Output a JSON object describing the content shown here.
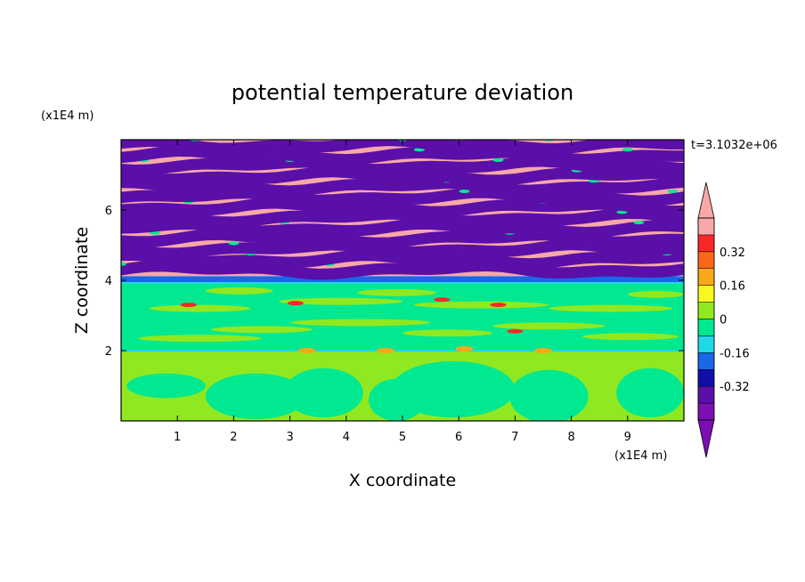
{
  "chart_data": {
    "type": "heatmap",
    "title": "potential temperature deviation",
    "xlabel": "X coordinate",
    "ylabel": "Z coordinate",
    "x_unit": "(x1E4 m)",
    "y_unit": "(x1E4 m)",
    "time_label": "t=3.1032e+06",
    "xlim": [
      0,
      10
    ],
    "ylim": [
      0,
      8
    ],
    "x_ticks": [
      "1",
      "2",
      "3",
      "4",
      "5",
      "6",
      "7",
      "8",
      "9"
    ],
    "y_ticks": [
      "2",
      "4",
      "6"
    ],
    "colorbar": {
      "levels": [
        -0.48,
        -0.4,
        -0.32,
        -0.24,
        -0.16,
        -0.08,
        0,
        0.08,
        0.16,
        0.24,
        0.32,
        0.4,
        0.48
      ],
      "colors": [
        "#7b0fb3",
        "#5a0fa8",
        "#1010a8",
        "#1868e8",
        "#20d8e8",
        "#00e890",
        "#90e820",
        "#f8f820",
        "#f8a818",
        "#f86818",
        "#f82828",
        "#f8a8a8"
      ],
      "under_color": "#7b0fb3",
      "over_color": "#f8a8a8",
      "labels": [
        "0.32",
        "0.16",
        "0",
        "-0.16",
        "-0.32"
      ],
      "label_values": [
        0.32,
        0.16,
        0,
        -0.16,
        -0.32
      ]
    },
    "regions": [
      {
        "z_range": [
          4.0,
          8.0
        ],
        "pattern": "alternating bands",
        "values": [
          0.48,
          -0.48
        ]
      },
      {
        "z_range": [
          3.9,
          4.1
        ],
        "pattern": "thin layer",
        "values": [
          -0.16
        ]
      },
      {
        "z_range": [
          2.0,
          3.9
        ],
        "pattern": "mixed",
        "values": [
          -0.08,
          0.0
        ]
      },
      {
        "z_range": [
          0.0,
          2.0
        ],
        "pattern": "convective cells",
        "values": [
          0.0,
          -0.08
        ]
      }
    ]
  }
}
